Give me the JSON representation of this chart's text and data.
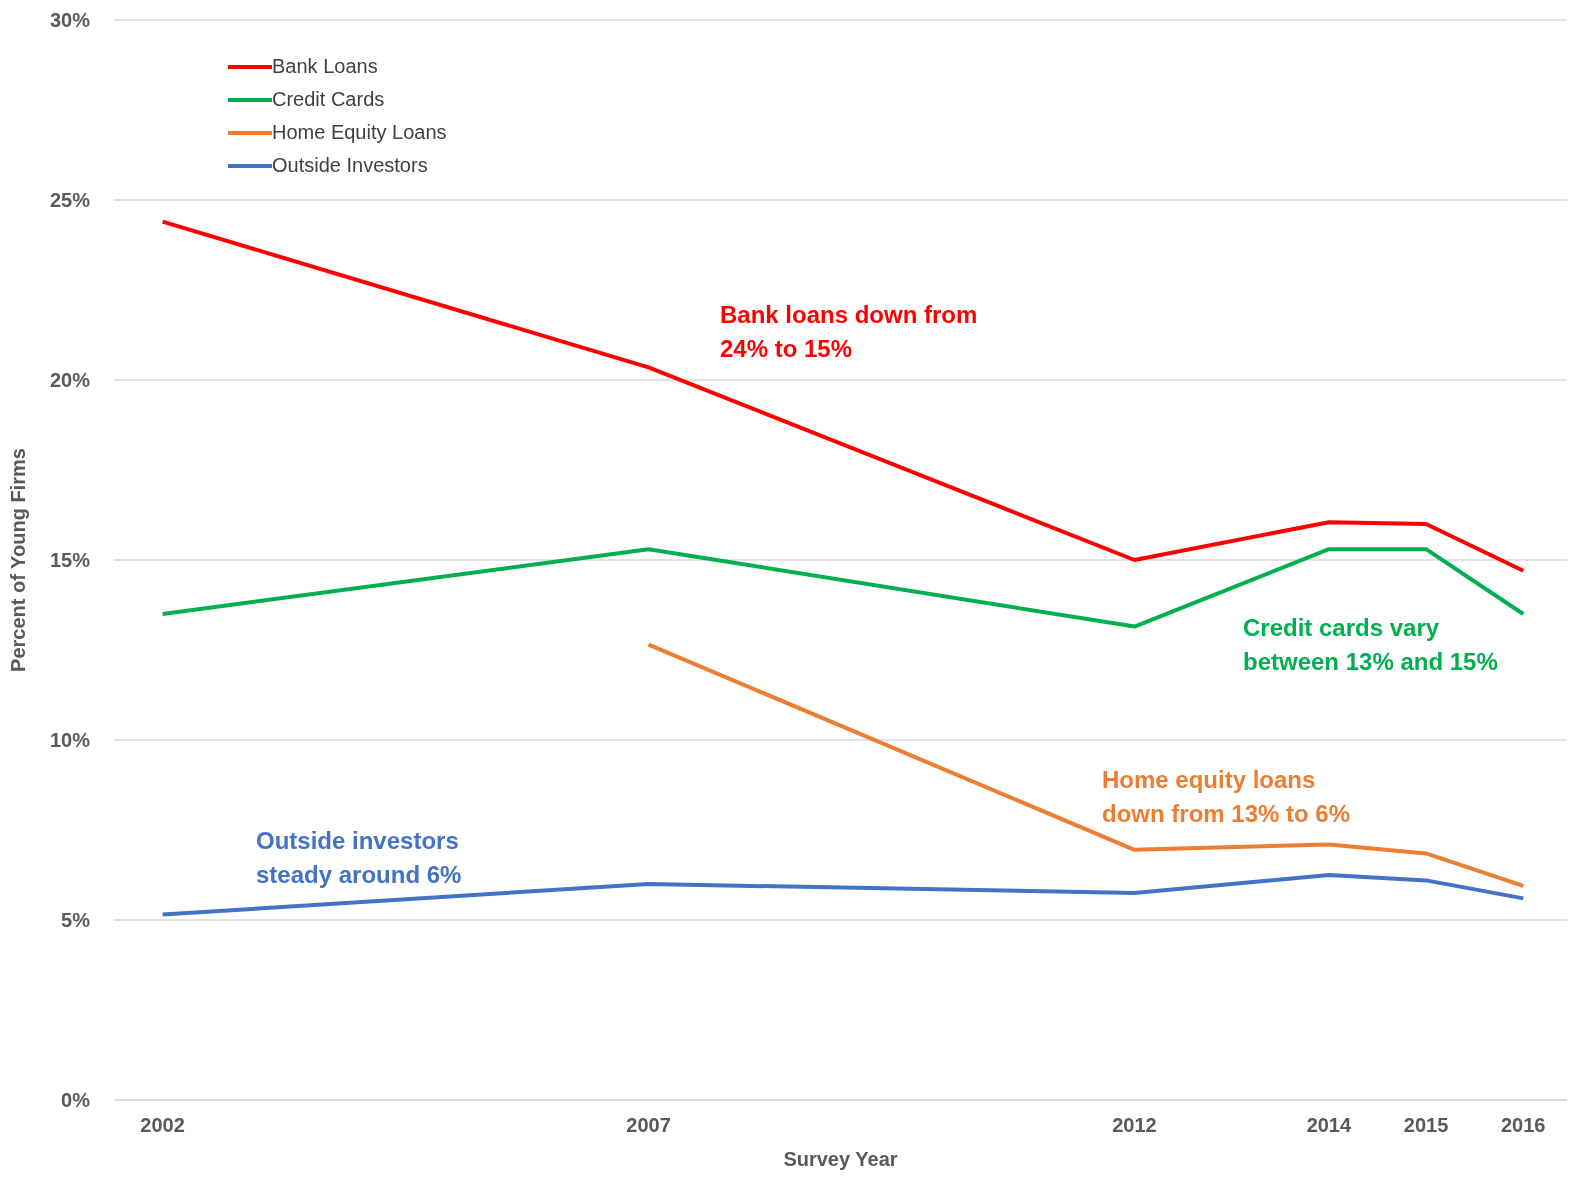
{
  "chart_data": {
    "type": "line",
    "xlabel": "Survey Year",
    "ylabel": "Percent of Young Firms",
    "x": [
      2002,
      2007,
      2012,
      2014,
      2015,
      2016
    ],
    "xlim": [
      2001.5,
      2016.45
    ],
    "xticks": [
      2002,
      2007,
      2012,
      2014,
      2015,
      2016
    ],
    "ylim": [
      0,
      30
    ],
    "yticks": [
      {
        "value": 0,
        "label": "0%"
      },
      {
        "value": 5,
        "label": "5%"
      },
      {
        "value": 10,
        "label": "10%"
      },
      {
        "value": 15,
        "label": "15%"
      },
      {
        "value": 20,
        "label": "20%"
      },
      {
        "value": 25,
        "label": "25%"
      },
      {
        "value": 30,
        "label": "30%"
      }
    ],
    "grid": "y",
    "legend": "top left",
    "marker": "none",
    "line_style": "solid",
    "series": [
      {
        "name": "Bank Loans",
        "color": "#ff0000",
        "values": [
          24.4,
          20.35,
          15.0,
          16.05,
          16.0,
          14.7
        ]
      },
      {
        "name": "Credit Cards",
        "color": "#00b050",
        "values": [
          13.5,
          15.3,
          13.15,
          15.3,
          15.3,
          13.5
        ]
      },
      {
        "name": "Home Equity Loans",
        "color": "#ed7d31",
        "values": [
          null,
          12.65,
          6.95,
          7.1,
          6.85,
          5.95
        ]
      },
      {
        "name": "Outside Investors",
        "color": "#4472c4",
        "values": [
          5.15,
          6.0,
          5.75,
          6.25,
          6.1,
          5.6
        ]
      }
    ],
    "annotations": [
      "Bank loans down from\n24% to 15%",
      "Credit cards vary\nbetween 13% and 15%",
      "Home equity loans\ndown from 13% to 6%",
      "Outside investors\nsteady around 6%"
    ]
  }
}
